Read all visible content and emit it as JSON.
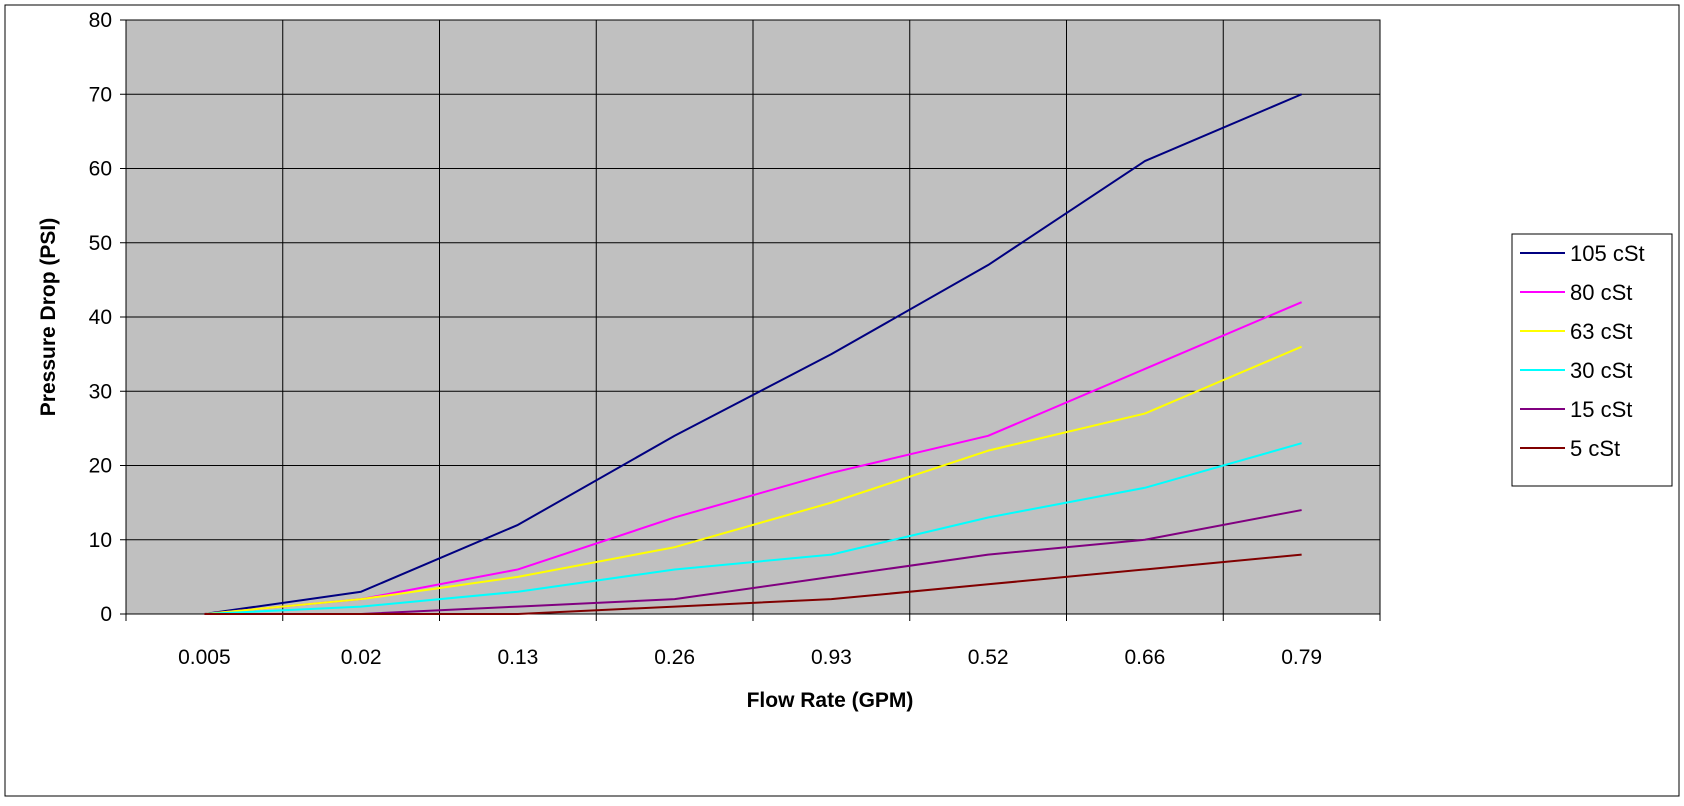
{
  "chart_data": {
    "type": "line",
    "title": "",
    "xlabel": "Flow Rate (GPM)",
    "ylabel": "Pressure Drop (PSI)",
    "categories": [
      "0.005",
      "0.02",
      "0.13",
      "0.26",
      "0.93",
      "0.52",
      "0.66",
      "0.79"
    ],
    "ylim": [
      0,
      80
    ],
    "yticks": [
      "0",
      "10",
      "20",
      "30",
      "40",
      "50",
      "60",
      "70",
      "80"
    ],
    "grid": true,
    "plot_background": "#C0C0C0",
    "legend_position": "right",
    "series": [
      {
        "name": "105 cSt",
        "color": "#000080",
        "values": [
          0,
          3,
          12,
          24,
          35,
          47,
          61,
          70
        ]
      },
      {
        "name": "80 cSt",
        "color": "#FF00FF",
        "values": [
          0,
          2,
          6,
          13,
          19,
          24,
          33,
          42
        ]
      },
      {
        "name": "63 cSt",
        "color": "#FFFF00",
        "values": [
          0,
          2,
          5,
          9,
          15,
          22,
          27,
          36
        ]
      },
      {
        "name": "30 cSt",
        "color": "#00FFFF",
        "values": [
          0,
          1,
          3,
          6,
          8,
          13,
          17,
          23
        ]
      },
      {
        "name": "15 cSt",
        "color": "#800080",
        "values": [
          0,
          0,
          1,
          2,
          5,
          8,
          10,
          14
        ]
      },
      {
        "name": "5 cSt",
        "color": "#800000",
        "values": [
          0,
          0,
          0,
          1,
          2,
          4,
          6,
          8
        ]
      }
    ]
  }
}
